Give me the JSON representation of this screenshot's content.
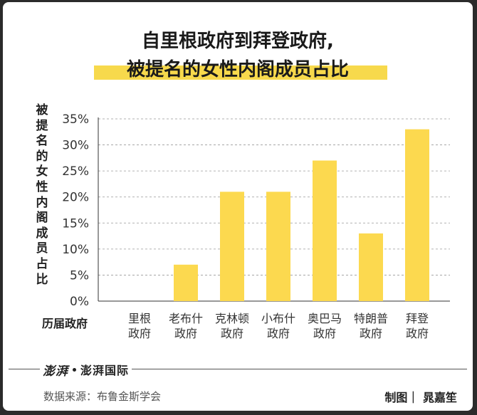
{
  "title_line1": "自里根政府到拜登政府,",
  "title_line2": "被提名的女性内阁成员占比",
  "colors": {
    "bar": "#fcd94f",
    "highlight": "#f7d94c",
    "grid": "#999999"
  },
  "chart_data": {
    "type": "bar",
    "title": "自里根政府到拜登政府,被提名的女性内阁成员占比",
    "ylabel": "被提名的女性内阁成员占比",
    "xlabel": "历届政府",
    "categories": [
      "里根\n政府",
      "老布什\n政府",
      "克林顿\n政府",
      "小布什\n政府",
      "奥巴马\n政府",
      "特朗普\n政府",
      "拜登\n政府"
    ],
    "values": [
      0,
      7,
      21,
      21,
      27,
      13,
      33
    ],
    "ylim": [
      0,
      35
    ],
    "yticks": [
      "0%",
      "5%",
      "10%",
      "15%",
      "20%",
      "25%",
      "30%",
      "35%"
    ],
    "grid": true
  },
  "footer": {
    "logo_mark": "澎湃",
    "logo_name": "澎湃国际",
    "source": "数据来源：布鲁金斯学会",
    "credit": "制图｜ 晁嘉笙"
  }
}
